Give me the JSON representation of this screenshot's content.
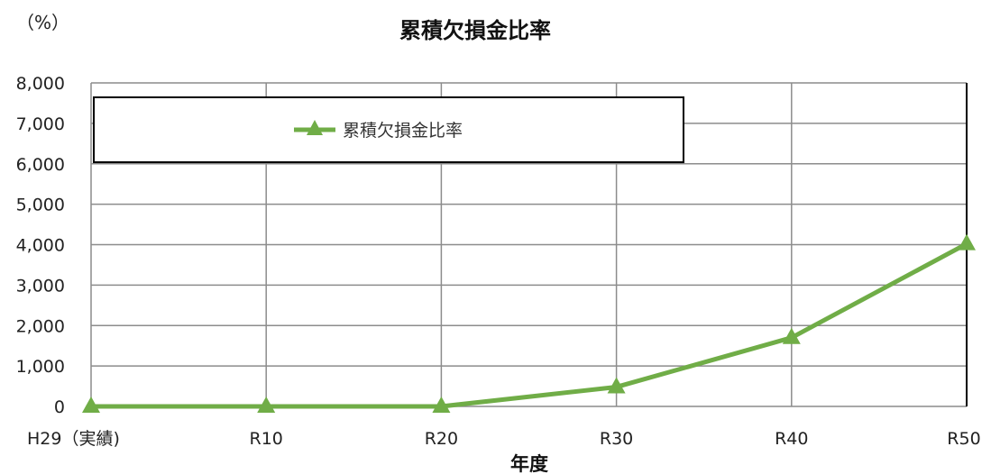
{
  "chart_data": {
    "type": "line",
    "title": "累積欠損金比率",
    "unit_label": "（%）",
    "xlabel": "年度",
    "ylabel": "",
    "categories": [
      "H29（実績)",
      "R10",
      "R20",
      "R30",
      "R40",
      "R50"
    ],
    "ylim": [
      0,
      8000
    ],
    "yticks": [
      0,
      1000,
      2000,
      3000,
      4000,
      5000,
      6000,
      7000,
      8000
    ],
    "ytick_labels": [
      "0",
      "1,000",
      "2,000",
      "3,000",
      "4,000",
      "5,000",
      "6,000",
      "7,000",
      "8,000"
    ],
    "grid": true,
    "legend_position": "top",
    "series": [
      {
        "name": "累積欠損金比率",
        "color": "#70ad47",
        "marker": "triangle",
        "values": [
          0,
          0,
          0,
          480,
          1700,
          4020
        ]
      }
    ]
  }
}
